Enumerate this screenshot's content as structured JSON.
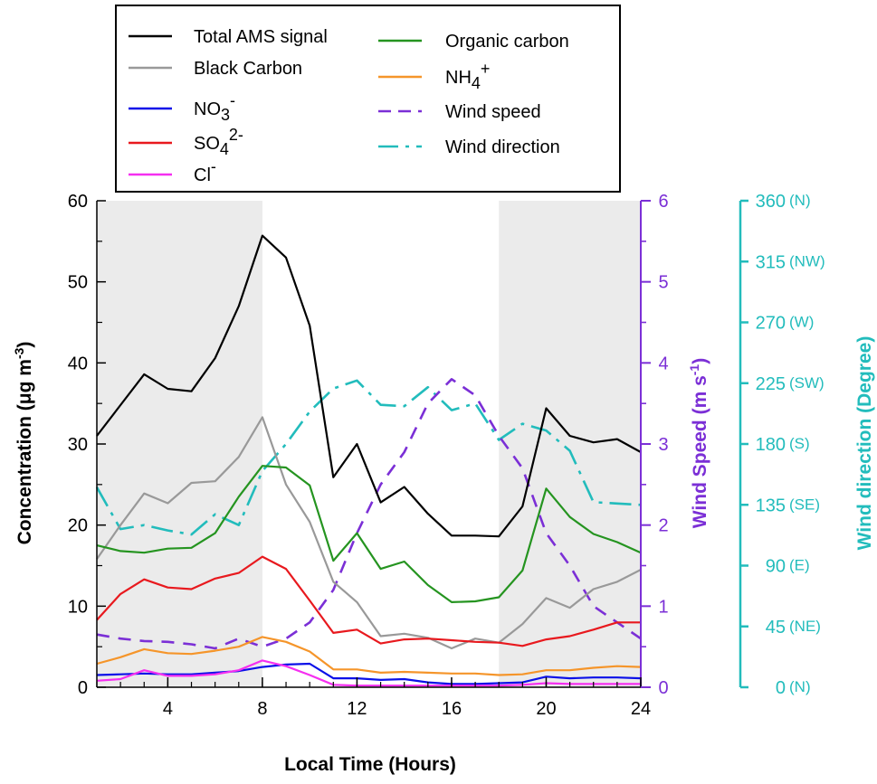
{
  "chart_data": {
    "type": "line",
    "xlabel": "Local Time (Hours)",
    "ylabel_left": "Concentration (μg m",
    "ylabel_left_sup": "-3",
    "ylabel_left_close": ")",
    "ylabel_mid": "Wind Speed (m s",
    "ylabel_mid_sup": "-1",
    "ylabel_mid_close": ")",
    "ylabel_right": "Wind direction (Degree)",
    "x_range": [
      1,
      24
    ],
    "x_ticks": [
      4,
      8,
      12,
      16,
      20,
      24
    ],
    "ylim_left": [
      0,
      60
    ],
    "yticks_left": [
      0,
      10,
      20,
      30,
      40,
      50,
      60
    ],
    "ylim_mid": [
      0,
      6
    ],
    "yticks_mid": [
      0,
      1,
      2,
      3,
      4,
      5,
      6
    ],
    "ylim_right": [
      0,
      360
    ],
    "yticks_right": [
      {
        "value": 0,
        "label": "0",
        "dir": "(N)"
      },
      {
        "value": 45,
        "label": "45",
        "dir": "(NE)"
      },
      {
        "value": 90,
        "label": "90",
        "dir": "(E)"
      },
      {
        "value": 135,
        "label": "135",
        "dir": "(SE)"
      },
      {
        "value": 180,
        "label": "180",
        "dir": "(S)"
      },
      {
        "value": 225,
        "label": "225",
        "dir": "(SW)"
      },
      {
        "value": 270,
        "label": "270",
        "dir": "(W)"
      },
      {
        "value": 315,
        "label": "315",
        "dir": "(NW)"
      },
      {
        "value": 360,
        "label": "360",
        "dir": "(N)"
      }
    ],
    "shaded_ranges": [
      [
        1,
        8
      ],
      [
        18,
        24
      ]
    ],
    "colors": {
      "left_axis": "#000000",
      "mid_axis": "#7b2fd6",
      "right_axis": "#22bcbc",
      "shade": "#ebebeb"
    },
    "x": [
      1,
      2,
      3,
      4,
      5,
      6,
      7,
      8,
      9,
      10,
      11,
      12,
      13,
      14,
      15,
      16,
      17,
      18,
      19,
      20,
      21,
      22,
      23,
      24
    ],
    "series": [
      {
        "key": "total",
        "name": "Total AMS signal",
        "axis": "left",
        "color": "#000000",
        "dash": "",
        "values": [
          31.0,
          34.8,
          38.6,
          36.8,
          36.5,
          40.6,
          47.0,
          55.7,
          53.0,
          44.6,
          25.9,
          30.0,
          22.8,
          24.7,
          21.4,
          18.7,
          18.7,
          18.6,
          22.3,
          34.4,
          31.0,
          30.2,
          30.6,
          29.0
        ]
      },
      {
        "key": "bc",
        "name": "Black Carbon",
        "axis": "left",
        "color": "#999999",
        "dash": "",
        "values": [
          15.8,
          20.0,
          23.9,
          22.7,
          25.2,
          25.4,
          28.4,
          33.3,
          25.0,
          20.4,
          13.0,
          10.5,
          6.3,
          6.6,
          6.1,
          4.8,
          6.0,
          5.5,
          7.8,
          11.0,
          9.8,
          12.1,
          13.0,
          14.5
        ]
      },
      {
        "key": "no3",
        "name": "NO3-",
        "axis": "left",
        "color": "#0b10e8",
        "dash": "",
        "values": [
          1.5,
          1.6,
          1.7,
          1.6,
          1.6,
          1.8,
          2.0,
          2.5,
          2.8,
          2.9,
          1.1,
          1.1,
          0.9,
          1.0,
          0.6,
          0.4,
          0.4,
          0.5,
          0.6,
          1.3,
          1.1,
          1.2,
          1.2,
          1.1
        ]
      },
      {
        "key": "so4",
        "name": "SO42-",
        "axis": "left",
        "color": "#e8191e",
        "dash": "",
        "values": [
          8.3,
          11.5,
          13.3,
          12.3,
          12.1,
          13.4,
          14.1,
          16.1,
          14.6,
          10.7,
          6.7,
          7.1,
          5.4,
          5.9,
          6.0,
          5.8,
          5.6,
          5.5,
          5.1,
          5.9,
          6.3,
          7.1,
          8.0,
          8.0
        ]
      },
      {
        "key": "cl",
        "name": "Cl-",
        "axis": "left",
        "color": "#f52ff0",
        "dash": "",
        "values": [
          0.8,
          1.0,
          2.1,
          1.4,
          1.4,
          1.6,
          2.1,
          3.3,
          2.6,
          1.5,
          0.3,
          0.2,
          0.2,
          0.2,
          0.2,
          0.2,
          0.2,
          0.2,
          0.3,
          0.5,
          0.4,
          0.4,
          0.4,
          0.4
        ]
      },
      {
        "key": "oc",
        "name": "Organic carbon",
        "axis": "left",
        "color": "#259420",
        "dash": "",
        "values": [
          17.5,
          16.8,
          16.6,
          17.1,
          17.2,
          19.0,
          23.5,
          27.3,
          27.1,
          24.9,
          15.6,
          19.0,
          14.6,
          15.5,
          12.6,
          10.5,
          10.6,
          11.1,
          14.4,
          24.5,
          21.0,
          18.9,
          17.9,
          16.6
        ]
      },
      {
        "key": "nh4",
        "name": "NH4+",
        "axis": "left",
        "color": "#f5952a",
        "dash": "",
        "values": [
          2.9,
          3.7,
          4.7,
          4.2,
          4.1,
          4.5,
          5.0,
          6.2,
          5.6,
          4.4,
          2.2,
          2.2,
          1.8,
          1.9,
          1.8,
          1.7,
          1.7,
          1.5,
          1.6,
          2.1,
          2.1,
          2.4,
          2.6,
          2.5
        ]
      },
      {
        "key": "ws",
        "name": "Wind speed",
        "axis": "mid",
        "color": "#7b2fd6",
        "dash": "14,10",
        "values": [
          0.65,
          0.6,
          0.57,
          0.56,
          0.53,
          0.48,
          0.6,
          0.5,
          0.6,
          0.8,
          1.2,
          1.9,
          2.5,
          2.9,
          3.5,
          3.8,
          3.6,
          3.1,
          2.7,
          1.9,
          1.5,
          1.0,
          0.8,
          0.6
        ]
      },
      {
        "key": "wd",
        "name": "Wind direction",
        "axis": "right",
        "color": "#22bcbc",
        "dash": "24,8,4,8",
        "values": [
          148,
          117,
          120,
          116,
          113,
          128,
          120,
          160,
          180,
          204,
          221,
          227,
          209,
          208,
          222,
          205,
          210,
          183,
          195,
          190,
          175,
          137,
          136,
          135
        ]
      }
    ],
    "legend": {
      "col1": [
        {
          "key": "total",
          "text": "Total AMS signal"
        },
        {
          "key": "bc",
          "text": "Black Carbon"
        },
        {
          "key": "no3",
          "base": "NO",
          "sub": "3",
          "sup": "-"
        },
        {
          "key": "so4",
          "base": "SO",
          "sub": "4",
          "sup": "2-"
        },
        {
          "key": "cl",
          "base": "Cl",
          "sup": "-"
        }
      ],
      "col2": [
        {
          "key": "oc",
          "text": "Organic carbon"
        },
        {
          "key": "nh4",
          "base": "NH",
          "sub": "4",
          "sup": "+"
        },
        {
          "key": "ws",
          "text": "Wind speed"
        },
        {
          "key": "wd",
          "text": "Wind direction"
        }
      ]
    }
  }
}
